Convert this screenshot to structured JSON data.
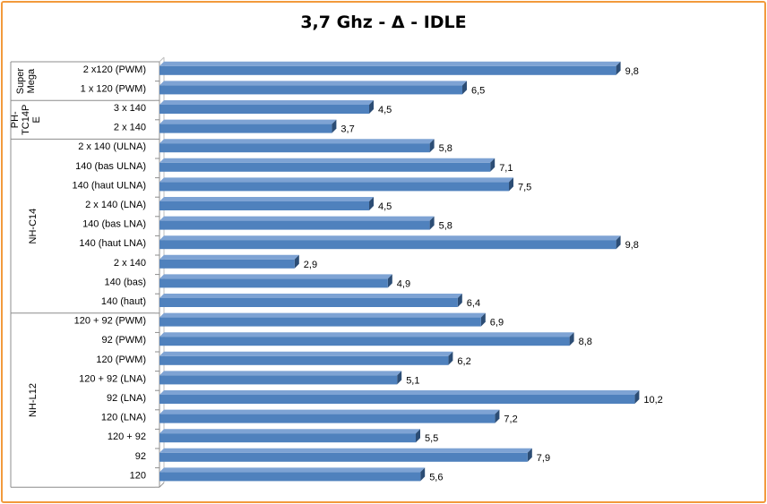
{
  "chart_data": {
    "type": "bar",
    "orientation": "horizontal",
    "title": "3,7 Ghz - Δ - IDLE",
    "xlabel": "",
    "ylabel": "",
    "xlim": [
      0,
      11
    ],
    "grid": false,
    "legend": "none",
    "bar_color": "#4f81bd",
    "groups": [
      {
        "name": "Super Mega",
        "display": [
          "Super",
          "Mega"
        ],
        "start": 0,
        "count": 2
      },
      {
        "name": "PH-TC14PE",
        "display": [
          "PH-",
          "TC14P",
          "E"
        ],
        "start": 2,
        "count": 2
      },
      {
        "name": "NH-C14",
        "display": [
          "NH-C14"
        ],
        "start": 4,
        "count": 9
      },
      {
        "name": "NH-L12",
        "display": [
          "NH-L12"
        ],
        "start": 13,
        "count": 9
      }
    ],
    "categories": [
      "2 x120 (PWM)",
      "1 x 120 (PWM)",
      "3 x 140",
      "2 x 140",
      "2 x 140 (ULNA)",
      "140 (bas ULNA)",
      "140 (haut ULNA)",
      "2 x 140 (LNA)",
      "140 (bas LNA)",
      "140 (haut LNA)",
      "2 x 140",
      "140 (bas)",
      "140 (haut)",
      "120 + 92 (PWM)",
      "92 (PWM)",
      "120 (PWM)",
      "120 + 92 (LNA)",
      "92 (LNA)",
      "120 (LNA)",
      "120 + 92",
      "92",
      "120"
    ],
    "values": [
      9.8,
      6.5,
      4.5,
      3.7,
      5.8,
      7.1,
      7.5,
      4.5,
      5.8,
      9.8,
      2.9,
      4.9,
      6.4,
      6.9,
      8.8,
      6.2,
      5.1,
      10.2,
      7.2,
      5.5,
      7.9,
      5.6
    ],
    "value_labels": [
      "9,8",
      "6,5",
      "4,5",
      "3,7",
      "5,8",
      "7,1",
      "7,5",
      "4,5",
      "5,8",
      "9,8",
      "2,9",
      "4,9",
      "6,4",
      "6,9",
      "8,8",
      "6,2",
      "5,1",
      "10,2",
      "7,2",
      "5,5",
      "7,9",
      "5,6"
    ]
  }
}
